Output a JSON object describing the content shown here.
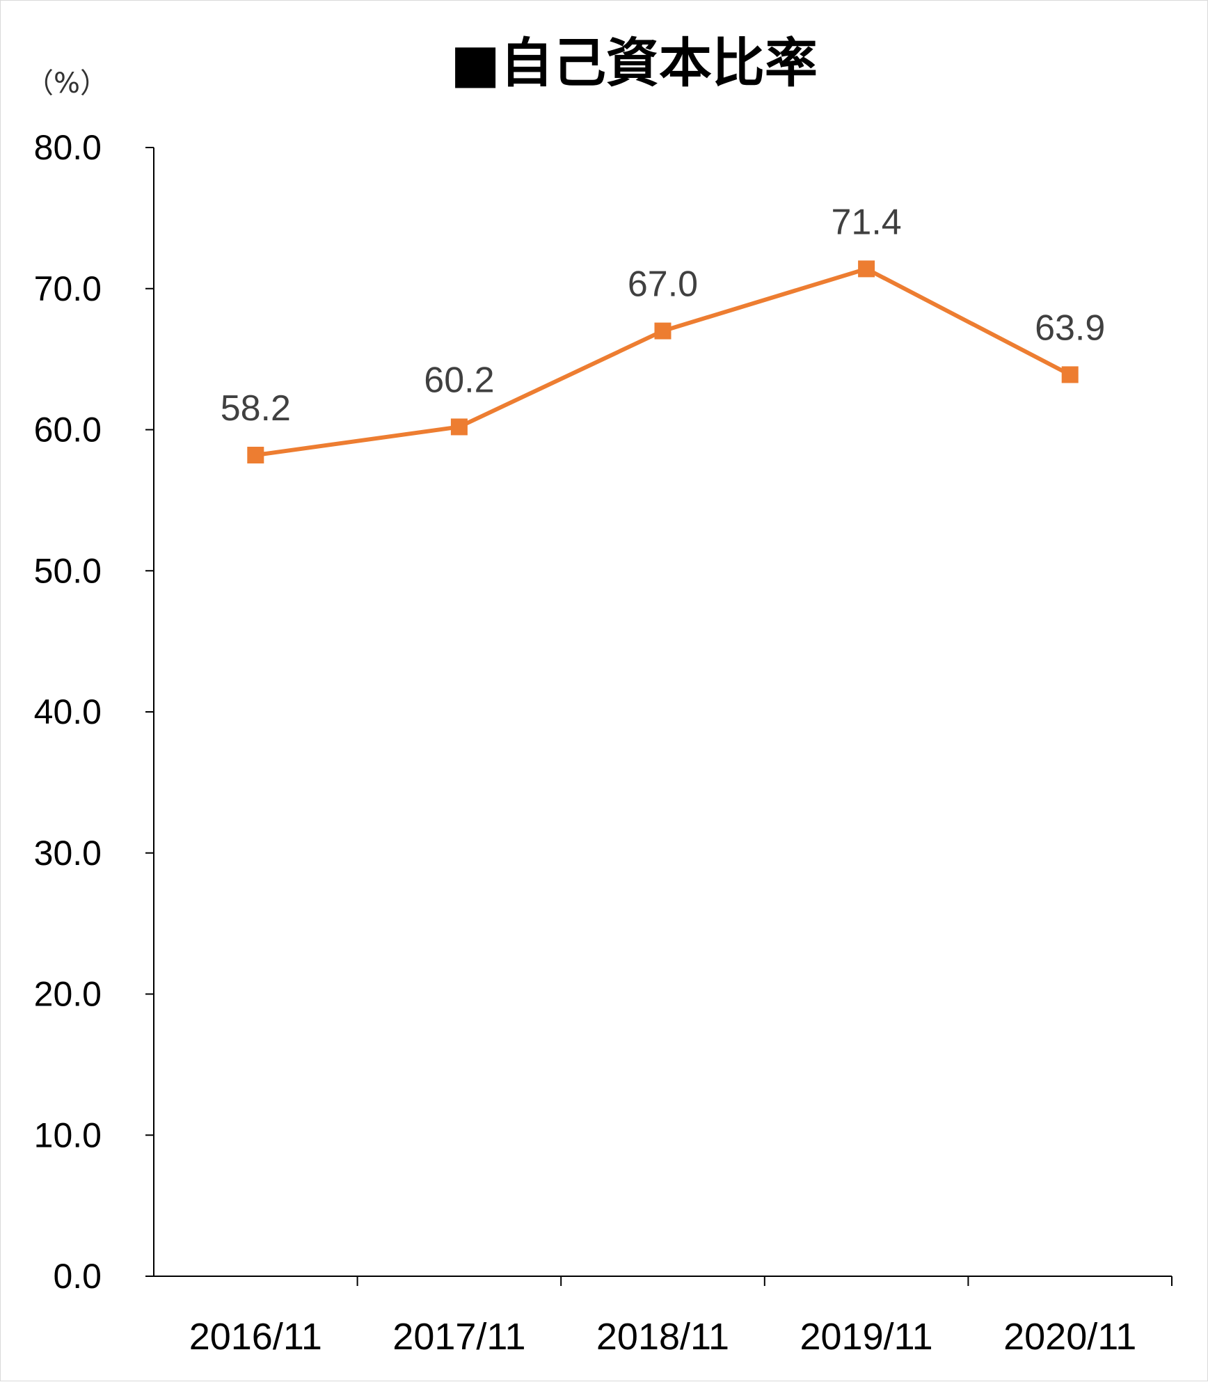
{
  "chart_data": {
    "type": "line",
    "title": "■自己資本比率",
    "ylabel": "（%）",
    "xlabel": "",
    "ylim": [
      0,
      80
    ],
    "yticks": [
      "0.0",
      "10.0",
      "20.0",
      "30.0",
      "40.0",
      "50.0",
      "60.0",
      "70.0",
      "80.0"
    ],
    "categories": [
      "2016/11",
      "2017/11",
      "2018/11",
      "2019/11",
      "2020/11"
    ],
    "values": [
      58.2,
      60.2,
      67.0,
      71.4,
      63.9
    ],
    "data_labels": [
      "58.2",
      "60.2",
      "67.0",
      "71.4",
      "63.9"
    ],
    "grid": false,
    "legend": "none",
    "colors": {
      "series": "#ED7D31",
      "axis": "#000000",
      "data_label": "#404040"
    }
  }
}
